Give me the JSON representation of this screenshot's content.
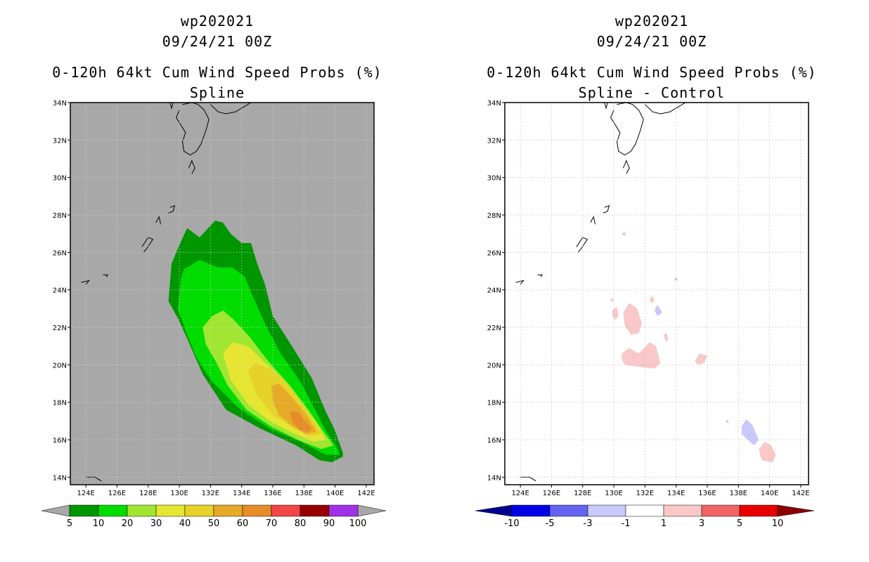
{
  "chart_data": [
    {
      "type": "heatmap",
      "storm_id": "wp202021",
      "date": "09/24/21 00Z",
      "title": "0-120h 64kt Cum Wind Speed Probs (%)",
      "subtitle": "Spline",
      "lon_range": [
        123,
        142.5
      ],
      "lat_range": [
        13.6,
        34
      ],
      "x_ticks": [
        "124E",
        "126E",
        "128E",
        "130E",
        "132E",
        "134E",
        "136E",
        "138E",
        "140E",
        "142E"
      ],
      "y_ticks": [
        "14N",
        "16N",
        "18N",
        "20N",
        "22N",
        "24N",
        "26N",
        "28N",
        "30N",
        "32N",
        "34N"
      ],
      "background_color": "#a8a8a8",
      "colorbar": {
        "labels": [
          "5",
          "10",
          "20",
          "30",
          "40",
          "50",
          "60",
          "70",
          "80",
          "90",
          "100"
        ],
        "colors": [
          "#009600",
          "#00dc00",
          "#a0e632",
          "#e6e632",
          "#e6d228",
          "#e6aa28",
          "#e68c28",
          "#f04646",
          "#960000",
          "#a032e6"
        ]
      },
      "contours": [
        {
          "level": "5-10",
          "color": "#009600",
          "points": [
            [
              130.5,
              27.3
            ],
            [
              131.3,
              26.8
            ],
            [
              132.3,
              27.7
            ],
            [
              132.8,
              27.6
            ],
            [
              133.3,
              27.0
            ],
            [
              134.0,
              26.5
            ],
            [
              134.6,
              26.5
            ],
            [
              135.0,
              25.4
            ],
            [
              135.5,
              24.3
            ],
            [
              136.0,
              22.6
            ],
            [
              137.3,
              20.9
            ],
            [
              138.5,
              19.3
            ],
            [
              139.4,
              17.5
            ],
            [
              140.0,
              16.5
            ],
            [
              140.5,
              15.3
            ],
            [
              140.5,
              15.1
            ],
            [
              139.8,
              14.8
            ],
            [
              139.0,
              14.9
            ],
            [
              137.5,
              15.7
            ],
            [
              135.2,
              16.6
            ],
            [
              133.0,
              17.6
            ],
            [
              131.5,
              19.5
            ],
            [
              130.5,
              21.4
            ],
            [
              129.9,
              22.5
            ],
            [
              129.3,
              23.4
            ],
            [
              129.4,
              24.4
            ],
            [
              129.5,
              25.4
            ],
            [
              130.0,
              26.4
            ]
          ]
        },
        {
          "level": "10-20",
          "color": "#00dc00",
          "points": [
            [
              130.1,
              24.6
            ],
            [
              130.3,
              25.1
            ],
            [
              131.3,
              25.6
            ],
            [
              132.5,
              25.2
            ],
            [
              133.4,
              25.2
            ],
            [
              134.2,
              24.7
            ],
            [
              134.8,
              23.5
            ],
            [
              135.5,
              22.2
            ],
            [
              136.5,
              20.6
            ],
            [
              137.7,
              19.2
            ],
            [
              138.6,
              17.8
            ],
            [
              139.4,
              16.5
            ],
            [
              140.1,
              15.6
            ],
            [
              140.3,
              15.2
            ],
            [
              139.4,
              15.2
            ],
            [
              137.8,
              15.9
            ],
            [
              135.8,
              16.6
            ],
            [
              133.8,
              17.7
            ],
            [
              132.1,
              19.1
            ],
            [
              131.1,
              20.4
            ],
            [
              130.5,
              21.6
            ],
            [
              129.9,
              23.0
            ]
          ]
        },
        {
          "level": "20-30",
          "color": "#a0e632",
          "points": [
            [
              131.5,
              22.0
            ],
            [
              132.1,
              22.6
            ],
            [
              132.8,
              22.9
            ],
            [
              133.5,
              22.4
            ],
            [
              134.5,
              21.5
            ],
            [
              135.7,
              20.2
            ],
            [
              137.1,
              18.9
            ],
            [
              138.2,
              17.7
            ],
            [
              139.2,
              16.5
            ],
            [
              139.9,
              15.7
            ],
            [
              139.1,
              15.5
            ],
            [
              137.6,
              16.0
            ],
            [
              135.9,
              16.7
            ],
            [
              134.3,
              17.6
            ],
            [
              133.1,
              18.9
            ],
            [
              132.4,
              20.1
            ],
            [
              131.7,
              21.1
            ]
          ]
        },
        {
          "level": "30-40",
          "color": "#e6e632",
          "points": [
            [
              132.8,
              20.6
            ],
            [
              133.4,
              21.2
            ],
            [
              134.4,
              21.0
            ],
            [
              135.5,
              20.1
            ],
            [
              136.8,
              19.1
            ],
            [
              137.9,
              17.9
            ],
            [
              138.8,
              16.9
            ],
            [
              139.4,
              16.0
            ],
            [
              138.6,
              15.9
            ],
            [
              137.2,
              16.4
            ],
            [
              135.8,
              17.0
            ],
            [
              134.4,
              17.9
            ],
            [
              133.3,
              19.2
            ]
          ]
        },
        {
          "level": "40-50",
          "color": "#e6d228",
          "points": [
            [
              134.4,
              19.7
            ],
            [
              134.9,
              20.1
            ],
            [
              135.8,
              19.8
            ],
            [
              136.9,
              19.0
            ],
            [
              137.9,
              17.9
            ],
            [
              138.8,
              16.8
            ],
            [
              139.1,
              16.3
            ],
            [
              138.4,
              16.2
            ],
            [
              137.4,
              16.6
            ],
            [
              136.0,
              17.3
            ],
            [
              134.9,
              18.5
            ]
          ]
        },
        {
          "level": "50-60",
          "color": "#e6aa28",
          "points": [
            [
              135.9,
              18.9
            ],
            [
              136.4,
              19.0
            ],
            [
              137.2,
              18.3
            ],
            [
              138.1,
              17.4
            ],
            [
              138.7,
              16.6
            ],
            [
              138.8,
              16.4
            ],
            [
              138.1,
              16.3
            ],
            [
              137.3,
              16.7
            ],
            [
              136.4,
              17.3
            ],
            [
              136.0,
              18.1
            ]
          ]
        },
        {
          "level": "60-70",
          "color": "#e68c28",
          "points": [
            [
              137.1,
              17.5
            ],
            [
              137.6,
              17.5
            ],
            [
              138.1,
              17.0
            ],
            [
              138.5,
              16.6
            ],
            [
              138.3,
              16.4
            ],
            [
              137.8,
              16.5
            ],
            [
              137.3,
              16.9
            ]
          ]
        }
      ]
    },
    {
      "type": "heatmap",
      "storm_id": "wp202021",
      "date": "09/24/21 00Z",
      "title": "0-120h 64kt Cum Wind Speed Probs (%)",
      "subtitle": "Spline - Control",
      "lon_range": [
        123,
        142.5
      ],
      "lat_range": [
        13.6,
        34
      ],
      "x_ticks": [
        "124E",
        "126E",
        "128E",
        "130E",
        "132E",
        "134E",
        "136E",
        "138E",
        "140E",
        "142E"
      ],
      "y_ticks": [
        "14N",
        "16N",
        "18N",
        "20N",
        "22N",
        "24N",
        "26N",
        "28N",
        "30N",
        "32N",
        "34N"
      ],
      "background_color": "#ffffff",
      "grid": true,
      "colorbar": {
        "labels": [
          "-10",
          "-5",
          "-3",
          "-1",
          "1",
          "3",
          "5",
          "10"
        ],
        "colors": [
          "#00008c",
          "#0000e6",
          "#6464f0",
          "#c8c8fa",
          "#ffffff",
          "#fac8c8",
          "#f06464",
          "#e60000",
          "#8c0000"
        ]
      },
      "contours": [
        {
          "level": "1-3",
          "color": "#fac8c8",
          "points": [
            [
              130.5,
              27.0
            ],
            [
              130.7,
              27.1
            ],
            [
              130.8,
              26.9
            ],
            [
              130.6,
              26.9
            ]
          ]
        },
        {
          "level": "1-3",
          "color": "#fac8c8",
          "points": [
            [
              129.8,
              23.5
            ],
            [
              129.9,
              23.6
            ],
            [
              130.0,
              23.4
            ],
            [
              129.8,
              23.4
            ]
          ]
        },
        {
          "level": "1-3",
          "color": "#fac8c8",
          "points": [
            [
              129.9,
              22.9
            ],
            [
              130.2,
              23.1
            ],
            [
              130.3,
              22.6
            ],
            [
              130.1,
              22.4
            ],
            [
              129.9,
              22.6
            ]
          ]
        },
        {
          "level": "1-3",
          "color": "#fac8c8",
          "points": [
            [
              130.6,
              22.8
            ],
            [
              131.0,
              23.3
            ],
            [
              131.5,
              23.0
            ],
            [
              131.8,
              22.2
            ],
            [
              131.6,
              21.7
            ],
            [
              131.1,
              21.6
            ],
            [
              130.7,
              22.1
            ]
          ]
        },
        {
          "level": "1-3",
          "color": "#fac8c8",
          "points": [
            [
              132.3,
              23.5
            ],
            [
              132.5,
              23.7
            ],
            [
              132.6,
              23.4
            ],
            [
              132.4,
              23.3
            ]
          ]
        },
        {
          "level": "1-3",
          "color": "#fac8c8",
          "points": [
            [
              133.2,
              21.6
            ],
            [
              133.4,
              21.7
            ],
            [
              133.5,
              21.3
            ],
            [
              133.3,
              21.3
            ]
          ]
        },
        {
          "level": "1-3",
          "color": "#fac8c8",
          "points": [
            [
              130.5,
              20.6
            ],
            [
              131.0,
              20.9
            ],
            [
              131.6,
              20.6
            ],
            [
              132.3,
              21.2
            ],
            [
              132.7,
              21.0
            ],
            [
              133.0,
              20.1
            ],
            [
              132.6,
              19.8
            ],
            [
              131.6,
              19.9
            ],
            [
              130.7,
              20.0
            ],
            [
              130.5,
              20.3
            ]
          ]
        },
        {
          "level": "1-3",
          "color": "#fac8c8",
          "points": [
            [
              135.2,
              20.2
            ],
            [
              135.5,
              20.6
            ],
            [
              136.0,
              20.5
            ],
            [
              135.8,
              20.1
            ],
            [
              135.4,
              20.0
            ]
          ]
        },
        {
          "level": "1-3",
          "color": "#fac8c8",
          "points": [
            [
              137.2,
              17.0
            ],
            [
              137.3,
              17.1
            ],
            [
              137.4,
              16.9
            ],
            [
              137.2,
              16.9
            ]
          ]
        },
        {
          "level": "1-3",
          "color": "#fac8c8",
          "points": [
            [
              139.3,
              15.5
            ],
            [
              139.7,
              15.9
            ],
            [
              140.1,
              15.7
            ],
            [
              140.4,
              15.2
            ],
            [
              140.2,
              14.8
            ],
            [
              139.5,
              14.9
            ]
          ]
        },
        {
          "level": "-3--1",
          "color": "#c8c8fa",
          "points": [
            [
              132.6,
              22.9
            ],
            [
              132.8,
              23.2
            ],
            [
              133.1,
              22.8
            ],
            [
              132.8,
              22.6
            ]
          ]
        },
        {
          "level": "-3--1",
          "color": "#c8c8fa",
          "points": [
            [
              133.9,
              24.6
            ],
            [
              134.0,
              24.7
            ],
            [
              134.1,
              24.5
            ],
            [
              133.9,
              24.5
            ]
          ]
        },
        {
          "level": "-3--1",
          "color": "#c8c8fa",
          "points": [
            [
              138.2,
              16.7
            ],
            [
              138.5,
              17.1
            ],
            [
              138.9,
              16.8
            ],
            [
              139.3,
              16.0
            ],
            [
              139.0,
              15.7
            ],
            [
              138.6,
              16.0
            ],
            [
              138.2,
              16.3
            ]
          ]
        }
      ]
    }
  ]
}
